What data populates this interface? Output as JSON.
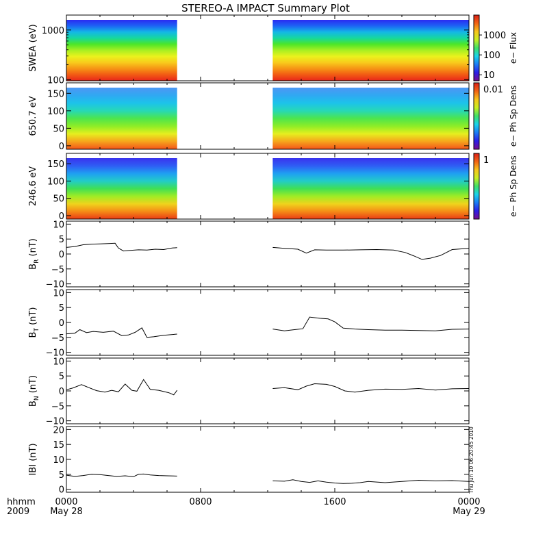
{
  "title": "STEREO-A IMPACT Summary Plot",
  "stamp": "Thu Jun 10 06:20:45 2010",
  "time_axis": {
    "row1": "hhmm",
    "row2": "2009",
    "ticks": [
      {
        "hours": 0,
        "label": "0000",
        "sub": "May 28"
      },
      {
        "hours": 8,
        "label": "0800",
        "sub": ""
      },
      {
        "hours": 16,
        "label": "1600",
        "sub": ""
      },
      {
        "hours": 24,
        "label": "0000",
        "sub": "May 29"
      }
    ],
    "range_hours": [
      0,
      24
    ]
  },
  "colors": {
    "trace": "#000000",
    "frame": "#000000",
    "background": "#ffffff"
  },
  "chart_data": [
    {
      "type": "heatmap",
      "ylabel": "SWEA (eV)",
      "yscale": "log",
      "ylim": [
        95,
        2000
      ],
      "yticks": [
        {
          "v": 100,
          "l": "100"
        },
        {
          "v": 1000,
          "l": "1000"
        }
      ],
      "colorbar_label": "e− Flux",
      "colorbar_scale": "log",
      "colorbar_range": [
        5,
        10000
      ],
      "colorbar_ticks": [
        {
          "v": 10,
          "l": "10"
        },
        {
          "v": 100,
          "l": "100"
        },
        {
          "v": 1000,
          "l": "1000"
        }
      ],
      "data_intervals_hours": [
        [
          0,
          6.6
        ],
        [
          12.3,
          24
        ]
      ],
      "rows_bottom_to_top_color": [
        "#e8261a",
        "#f25a14",
        "#f69415",
        "#f8cb1c",
        "#eaf21d",
        "#a8ef22",
        "#4de628",
        "#16d89e",
        "#14b7e6",
        "#1d64f4",
        "#2a2bf2"
      ]
    },
    {
      "type": "heatmap",
      "ylabel": "650.7 eV",
      "ylim": [
        -10,
        180
      ],
      "yticks": [
        {
          "v": 0,
          "l": "0"
        },
        {
          "v": 50,
          "l": "50"
        },
        {
          "v": 100,
          "l": "100"
        },
        {
          "v": 150,
          "l": "150"
        }
      ],
      "colorbar_label": "e− Ph Sp Dens",
      "colorbar_ticks_text": [
        "0.01"
      ],
      "data_intervals_hours": [
        [
          0,
          6.6
        ],
        [
          12.3,
          24
        ]
      ],
      "rows_bottom_to_top_color": [
        "#f2531a",
        "#f6a41c",
        "#e6ee1f",
        "#8ded27",
        "#4de54d",
        "#27d8b6",
        "#1cc3ea",
        "#30a8f2",
        "#4d97f4"
      ]
    },
    {
      "type": "heatmap",
      "ylabel": "246.6 eV",
      "ylim": [
        -10,
        180
      ],
      "yticks": [
        {
          "v": 0,
          "l": "0"
        },
        {
          "v": 50,
          "l": "50"
        },
        {
          "v": 100,
          "l": "100"
        },
        {
          "v": 150,
          "l": "150"
        }
      ],
      "colorbar_label": "e− Ph Sp Dens",
      "colorbar_ticks_text": [
        "1"
      ],
      "data_intervals_hours": [
        [
          0,
          6.6
        ],
        [
          12.3,
          24
        ]
      ],
      "rows_bottom_to_top_color": [
        "#ea3a15",
        "#f58c16",
        "#efd31d",
        "#9eec25",
        "#3fdf55",
        "#22ccc8",
        "#1f9ef2",
        "#2f5df4",
        "#3a33ee"
      ]
    },
    {
      "type": "line",
      "ylabel_main": "B",
      "ylabel_sub": "R",
      "ylabel_unit": "(nT)",
      "ylim": [
        -11,
        11
      ],
      "yticks": [
        {
          "v": -10,
          "l": "−10"
        },
        {
          "v": -5,
          "l": "−5"
        },
        {
          "v": 0,
          "l": "0"
        },
        {
          "v": 5,
          "l": "5"
        },
        {
          "v": 10,
          "l": "10"
        }
      ],
      "segments": [
        {
          "x": [
            0,
            0.5,
            1,
            1.5,
            2,
            2.5,
            2.9,
            3.1,
            3.4,
            3.8,
            4.3,
            4.8,
            5.3,
            5.8,
            6.3,
            6.6
          ],
          "y": [
            2.2,
            2.5,
            3.1,
            3.3,
            3.4,
            3.5,
            3.6,
            2.0,
            1.0,
            1.2,
            1.4,
            1.3,
            1.6,
            1.5,
            2.0,
            2.1
          ]
        },
        {
          "x": [
            12.3,
            13,
            13.8,
            14.3,
            14.8,
            15.5,
            16.5,
            17.5,
            18.5,
            19.5,
            20.2,
            20.7,
            21.2,
            21.7,
            22.3,
            23,
            24
          ],
          "y": [
            2.2,
            1.9,
            1.6,
            0.3,
            1.4,
            1.3,
            1.3,
            1.4,
            1.5,
            1.3,
            0.5,
            -0.6,
            -1.8,
            -1.4,
            -0.5,
            1.5,
            1.9
          ]
        }
      ]
    },
    {
      "type": "line",
      "ylabel_main": "B",
      "ylabel_sub": "T",
      "ylabel_unit": "(nT)",
      "ylim": [
        -11,
        11
      ],
      "yticks": [
        {
          "v": -10,
          "l": "−10"
        },
        {
          "v": -5,
          "l": "−5"
        },
        {
          "v": 0,
          "l": "0"
        },
        {
          "v": 5,
          "l": "5"
        },
        {
          "v": 10,
          "l": "10"
        }
      ],
      "segments": [
        {
          "x": [
            0,
            0.5,
            0.8,
            1.2,
            1.6,
            2.2,
            2.8,
            3.3,
            3.7,
            4.1,
            4.5,
            4.8,
            5.2,
            5.8,
            6.6
          ],
          "y": [
            -3.8,
            -3.6,
            -2.4,
            -3.4,
            -3.0,
            -3.3,
            -2.9,
            -4.4,
            -4.2,
            -3.3,
            -1.8,
            -5.0,
            -4.8,
            -4.3,
            -3.9
          ]
        },
        {
          "x": [
            12.3,
            13,
            13.6,
            14.1,
            14.5,
            15.1,
            15.6,
            16,
            16.5,
            17.2,
            18,
            19,
            20,
            21,
            22,
            23,
            24
          ],
          "y": [
            -2.2,
            -2.8,
            -2.4,
            -2.1,
            1.8,
            1.4,
            1.2,
            0.2,
            -1.9,
            -2.2,
            -2.4,
            -2.6,
            -2.6,
            -2.7,
            -2.8,
            -2.3,
            -2.2
          ]
        }
      ]
    },
    {
      "type": "line",
      "ylabel_main": "B",
      "ylabel_sub": "N",
      "ylabel_unit": "(nT)",
      "ylim": [
        -11,
        11
      ],
      "yticks": [
        {
          "v": -10,
          "l": "−10"
        },
        {
          "v": -5,
          "l": "−5"
        },
        {
          "v": 0,
          "l": "0"
        },
        {
          "v": 5,
          "l": "5"
        },
        {
          "v": 10,
          "l": "10"
        }
      ],
      "segments": [
        {
          "x": [
            0,
            0.4,
            0.9,
            1.3,
            1.8,
            2.3,
            2.7,
            3.1,
            3.5,
            3.9,
            4.2,
            4.6,
            5.0,
            5.5,
            6.1,
            6.4,
            6.6
          ],
          "y": [
            0.4,
            1.0,
            2.1,
            1.2,
            0.1,
            -0.4,
            0.2,
            -0.3,
            2.3,
            0.2,
            -0.1,
            3.8,
            0.5,
            0.2,
            -0.6,
            -1.3,
            0.2
          ]
        },
        {
          "x": [
            12.3,
            13,
            13.8,
            14.3,
            14.8,
            15.5,
            16,
            16.6,
            17.2,
            18,
            19,
            20,
            21,
            22,
            23,
            24
          ],
          "y": [
            0.8,
            1.1,
            0.4,
            1.6,
            2.4,
            2.2,
            1.5,
            0.0,
            -0.4,
            0.2,
            0.6,
            0.5,
            0.8,
            0.3,
            0.7,
            0.8
          ]
        }
      ]
    },
    {
      "type": "line",
      "ylabel_main": "IBI",
      "ylabel_sub": "",
      "ylabel_unit": "(nT)",
      "ylim": [
        -1,
        21
      ],
      "yticks": [
        {
          "v": 0,
          "l": "0"
        },
        {
          "v": 5,
          "l": "5"
        },
        {
          "v": 10,
          "l": "10"
        },
        {
          "v": 15,
          "l": "15"
        },
        {
          "v": 20,
          "l": "20"
        }
      ],
      "segments": [
        {
          "x": [
            0,
            0.5,
            1,
            1.5,
            2,
            2.5,
            3,
            3.5,
            4,
            4.3,
            4.6,
            5,
            5.5,
            6,
            6.6
          ],
          "y": [
            4.7,
            4.3,
            4.6,
            5.0,
            4.9,
            4.6,
            4.3,
            4.5,
            4.2,
            5.0,
            5.1,
            4.8,
            4.6,
            4.5,
            4.4
          ]
        },
        {
          "x": [
            12.3,
            13,
            13.5,
            14,
            14.5,
            15,
            15.5,
            16,
            16.5,
            17,
            17.5,
            18,
            19,
            20,
            21,
            22,
            23,
            24
          ],
          "y": [
            2.8,
            2.7,
            3.2,
            2.6,
            2.3,
            2.8,
            2.4,
            2.1,
            1.9,
            2.0,
            2.2,
            2.6,
            2.2,
            2.6,
            3.0,
            2.8,
            2.9,
            2.6
          ]
        }
      ]
    }
  ]
}
